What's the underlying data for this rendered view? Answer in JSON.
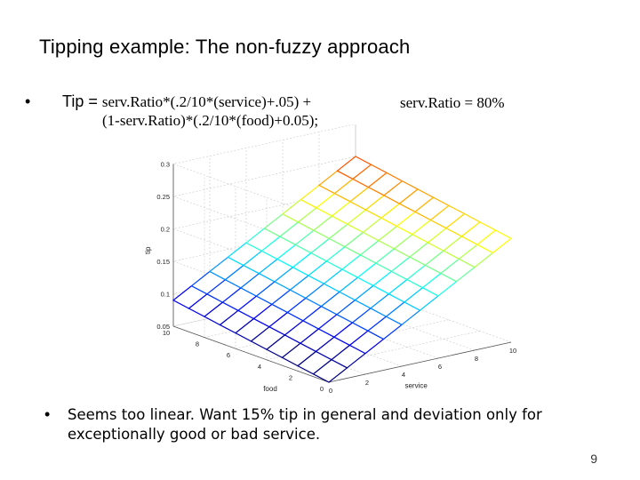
{
  "slide": {
    "title": "Tipping example: The non-fuzzy approach",
    "bullet_symbol": "•",
    "formula_lead": "Tip = ",
    "formula_line1": "serv.Ratio*(.2/10*(service)+.05) +",
    "formula_line2": "(1-serv.Ratio)*(.2/10*(food)+0.05);",
    "ratio_text": "serv.Ratio = 80%",
    "note": "Seems too linear. Want 15% tip in general and deviation only for exceptionally good or bad service.",
    "page_number": "9"
  },
  "chart_data": {
    "type": "surface",
    "zlabel": "tip",
    "xlabel": "service",
    "ylabel": "food",
    "serv_ratio": 0.8,
    "formula": "tip = 0.8*(0.2/10*service+0.05) + 0.2*(0.2/10*food+0.05)",
    "x_range": [
      0,
      10
    ],
    "y_range": [
      0,
      10
    ],
    "z_range": [
      0.05,
      0.3
    ],
    "z_ticks": [
      "0.3",
      "0.25",
      "0.2",
      "0.15",
      "0.1",
      "0.05"
    ],
    "x_ticks": [
      "0",
      "2",
      "4",
      "6",
      "8",
      "10"
    ],
    "y_ticks": [
      "0",
      "2",
      "4",
      "6",
      "8",
      "10"
    ],
    "grid_divisions": 10,
    "colormap": "jet",
    "grid": true
  }
}
